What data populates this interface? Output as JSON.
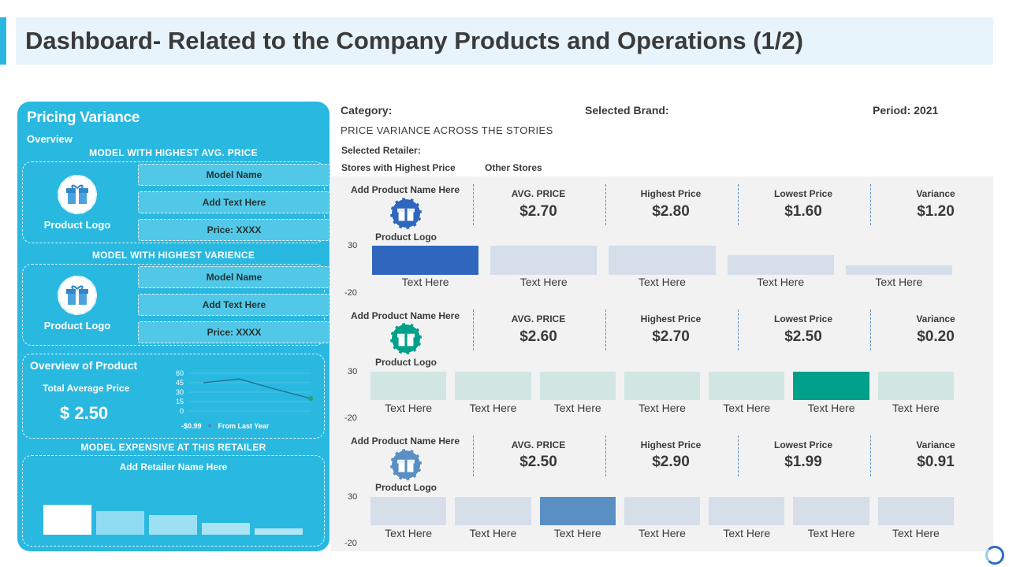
{
  "title": "Dashboard- Related to the Company Products and Operations (1/2)",
  "colors": {
    "accent": "#29b6e0",
    "panel": "#29b8e0",
    "blue": "#2f66be",
    "teal": "#00a08a",
    "steel": "#5a8fc4"
  },
  "left_panel": {
    "title": "Pricing Variance",
    "subtitle": "Overview",
    "caption_highest_avg": "MODEL  WITH HIGHEST  AVG.  PRICE",
    "caption_highest_var": "MODEL  WITH HIGHEST  VARIENCE",
    "caption_expensive": "MODEL  EXPENSIVE  AT THIS RETAILER",
    "models": [
      {
        "logo_label": "Product Logo",
        "fields": [
          "Model Name",
          "Add  Text Here",
          "Price: XXXX"
        ]
      },
      {
        "logo_label": "Product Logo",
        "fields": [
          "Model Name",
          "Add  Text Here",
          "Price: XXXX"
        ]
      }
    ],
    "overview": {
      "title": "Overview of Product",
      "label": "Total Average Price",
      "value": "$ 2.50",
      "change": "-$0.99",
      "change_note": "From Last Year",
      "y_ticks": [
        "60",
        "45",
        "30",
        "15",
        "0"
      ],
      "line_values": [
        45,
        51,
        35,
        20
      ],
      "line_ylim": [
        0,
        60
      ]
    },
    "retailer_name": "Add  Retailer Name Here",
    "retailer_bars": [
      10,
      8,
      6.5,
      4,
      2
    ]
  },
  "header": {
    "category": "Category:",
    "brand": "Selected Brand:",
    "period": "Period: 2021",
    "caps": "PRICE VARIANCE  ACROSS  THE  STORIES",
    "retailer": "Selected Retailer:",
    "stores_highest": "Stores with Highest Price",
    "other_stores": "Other Stores"
  },
  "metric_labels": [
    "AVG.  PRICE",
    "Highest Price",
    "Lowest Price",
    "Variance"
  ],
  "sections": [
    {
      "product_name": "Add  Product Name Here",
      "logo_label": "Product Logo",
      "logo_color": "#2f66be",
      "metrics": [
        "$2.70",
        "$2.80",
        "$1.60",
        "$1.20"
      ],
      "axis_top": "30",
      "axis_bottom": "-20",
      "highlight_color": "#2f66be",
      "base_color": "#d6deea",
      "values": [
        30,
        30,
        30,
        20,
        10
      ],
      "highlight_index": 0,
      "bar_labels": [
        "Text Here",
        "Text Here",
        "Text Here",
        "Text Here",
        "Text Here"
      ]
    },
    {
      "product_name": "Add  Product Name Here",
      "logo_label": "Product Logo",
      "logo_color": "#00a08a",
      "metrics": [
        "$2.60",
        "$2.70",
        "$2.50",
        "$0.20"
      ],
      "axis_top": "30",
      "axis_bottom": "-20",
      "highlight_color": "#00a08a",
      "base_color": "#d1e6e3",
      "values": [
        30,
        30,
        30,
        30,
        30,
        30,
        30
      ],
      "highlight_index": 5,
      "bar_labels": [
        "Text Here",
        "Text Here",
        "Text Here",
        "Text Here",
        "Text Here",
        "Text Here",
        "Text Here"
      ]
    },
    {
      "product_name": "Add  Product Name Here",
      "logo_label": "Product Logo",
      "logo_color": "#5a8fc4",
      "metrics": [
        "$2.50",
        "$2.90",
        "$1.99",
        "$0.91"
      ],
      "axis_top": "30",
      "axis_bottom": "-20",
      "highlight_color": "#5a8fc4",
      "base_color": "#d6deea",
      "values": [
        30,
        30,
        30,
        30,
        30,
        30,
        30
      ],
      "highlight_index": 2,
      "bar_labels": [
        "Text Here",
        "Text Here",
        "Text Here",
        "Text Here",
        "Text Here",
        "Text Here",
        "Text Here"
      ]
    }
  ]
}
